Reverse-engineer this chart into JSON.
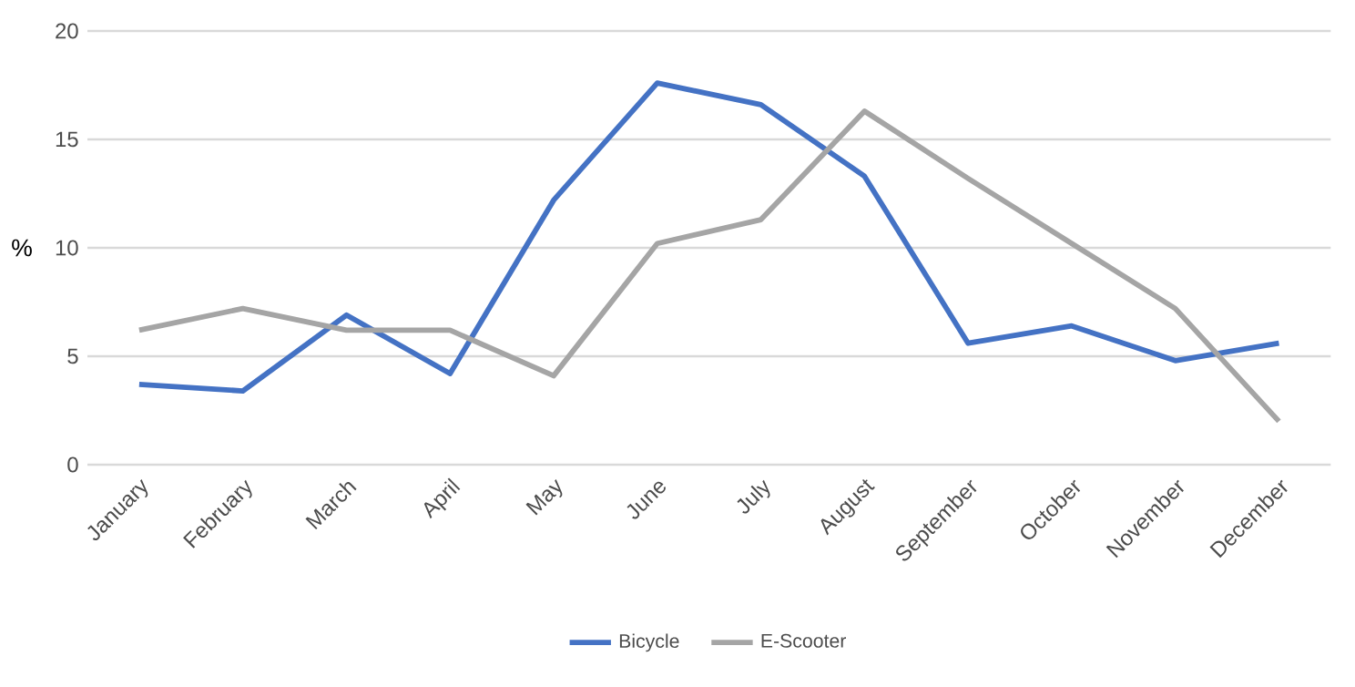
{
  "chart_data": {
    "type": "line",
    "ylabel": "%",
    "categories": [
      "January",
      "February",
      "March",
      "April",
      "May",
      "June",
      "July",
      "August",
      "September",
      "October",
      "November",
      "December"
    ],
    "series": [
      {
        "name": "Bicycle",
        "color": "#4472c4",
        "values": [
          3.7,
          3.4,
          6.9,
          4.2,
          12.2,
          17.6,
          16.6,
          13.3,
          5.6,
          6.4,
          4.8,
          5.6
        ]
      },
      {
        "name": "E-Scooter",
        "color": "#a5a5a5",
        "values": [
          6.2,
          7.2,
          6.2,
          6.2,
          4.1,
          10.2,
          11.3,
          16.3,
          13.2,
          10.2,
          7.2,
          2.0
        ]
      }
    ],
    "ylim": [
      0,
      20
    ],
    "yticks": [
      0,
      5,
      10,
      15,
      20
    ],
    "grid": "y",
    "legend": "bottom",
    "marker": "none",
    "line_style": "solid"
  }
}
